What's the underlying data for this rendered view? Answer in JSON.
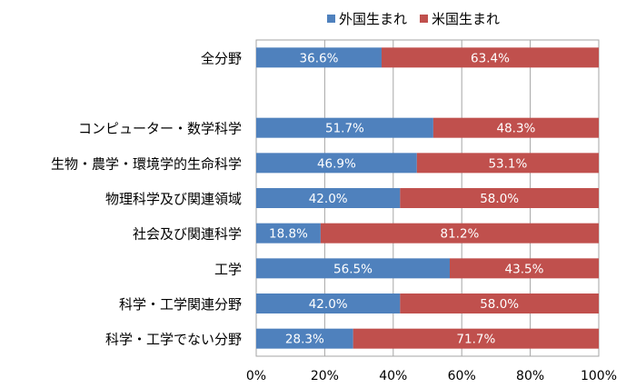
{
  "chart_data": {
    "type": "bar",
    "stacked": true,
    "orientation": "horizontal",
    "percent_scale": true,
    "categories": [
      "全分野",
      "",
      "コンピューター・数学科学",
      "生物・農学・環境学的生命科学",
      "物理科学及び関連領域",
      "社会及び関連科学",
      "工学",
      "科学・工学関連分野",
      "科学・工学でない分野"
    ],
    "series": [
      {
        "name": "外国生まれ",
        "color": "#4f81bd",
        "values": [
          36.6,
          null,
          51.7,
          46.9,
          42.0,
          18.8,
          56.5,
          42.0,
          28.3
        ],
        "labels": [
          "36.6%",
          "",
          "51.7%",
          "46.9%",
          "42.0%",
          "18.8%",
          "56.5%",
          "42.0%",
          "28.3%"
        ]
      },
      {
        "name": "米国生まれ",
        "color": "#c0504d",
        "values": [
          63.4,
          null,
          48.3,
          53.1,
          58.0,
          81.2,
          43.5,
          58.0,
          71.7
        ],
        "labels": [
          "63.4%",
          "",
          "48.3%",
          "53.1%",
          "58.0%",
          "81.2%",
          "43.5%",
          "58.0%",
          "71.7%"
        ]
      }
    ],
    "x_ticks": [
      "0%",
      "20%",
      "40%",
      "60%",
      "80%",
      "100%"
    ],
    "xlim": [
      0,
      100
    ],
    "grid": true,
    "legend": "top"
  }
}
